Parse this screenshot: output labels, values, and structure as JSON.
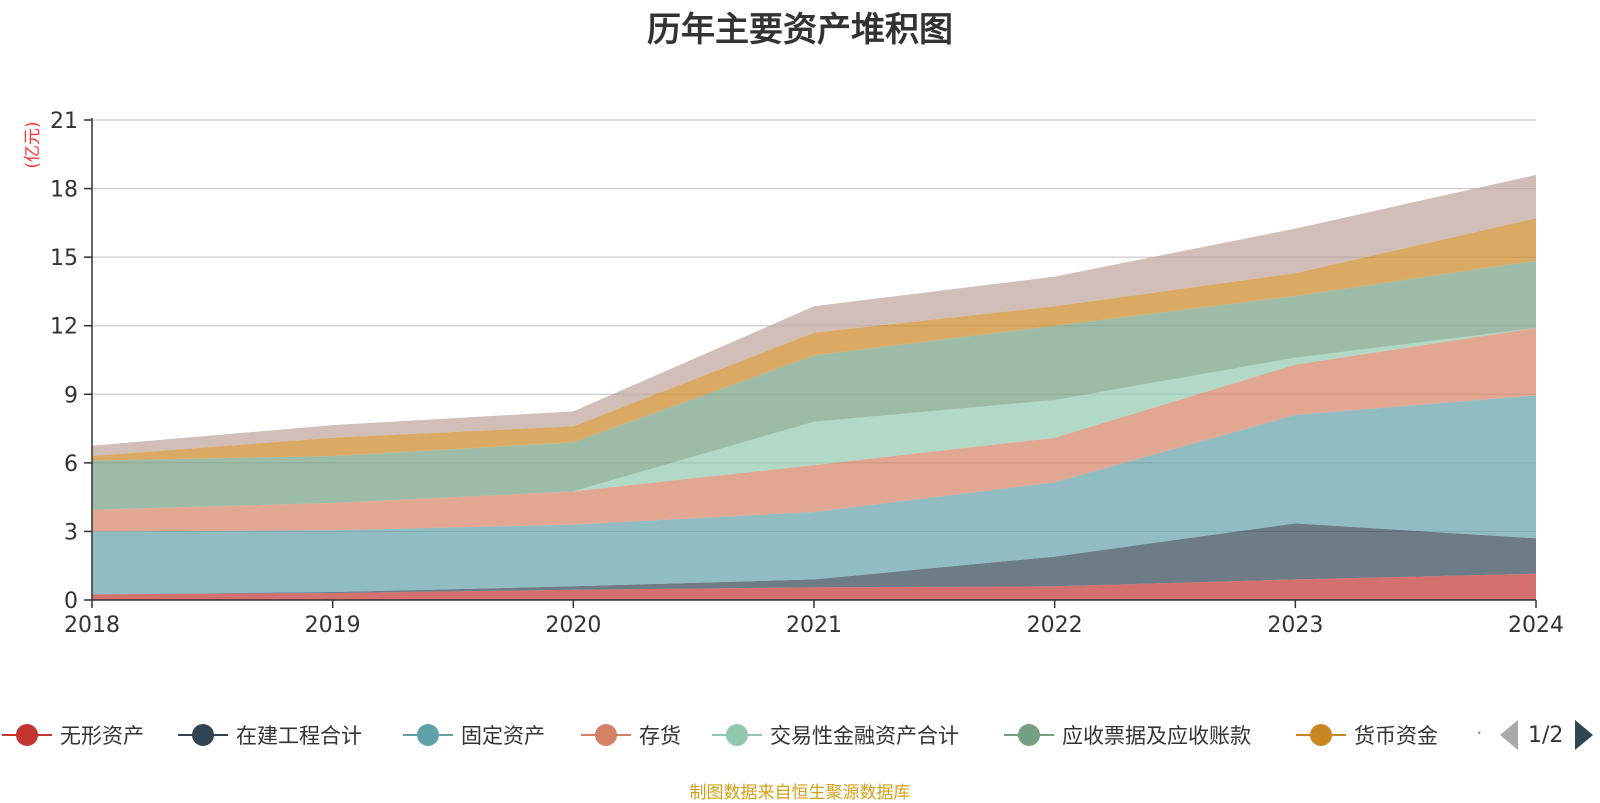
{
  "chart_data": {
    "type": "area",
    "title": "历年主要资产堆积图",
    "ylabel": "(亿元)",
    "xlabel": "",
    "categories": [
      "2018",
      "2019",
      "2020",
      "2021",
      "2022",
      "2023",
      "2024"
    ],
    "y_ticks": [
      "0",
      "3",
      "6",
      "9",
      "12",
      "15",
      "18",
      "21"
    ],
    "ylim": [
      0,
      21
    ],
    "stacked": true,
    "grid": true,
    "legend_position": "bottom",
    "series": [
      {
        "name": "无形资产",
        "color": "#c23531",
        "values": [
          0.25,
          0.3,
          0.45,
          0.55,
          0.6,
          0.9,
          1.15
        ]
      },
      {
        "name": "在建工程合计",
        "color": "#2f4554",
        "values": [
          0.0,
          0.05,
          0.15,
          0.35,
          1.3,
          2.45,
          1.55
        ]
      },
      {
        "name": "固定资产",
        "color": "#61a0a8",
        "values": [
          2.75,
          2.7,
          2.7,
          2.95,
          3.25,
          4.75,
          6.25
        ]
      },
      {
        "name": "存货",
        "color": "#d48265",
        "values": [
          0.95,
          1.2,
          1.45,
          2.05,
          1.95,
          2.2,
          2.95
        ]
      },
      {
        "name": "交易性金融资产合计",
        "color": "#91c7ae",
        "values": [
          0.0,
          0.0,
          0.0,
          1.9,
          1.65,
          0.3,
          0.0
        ]
      },
      {
        "name": "应收票据及应收账款",
        "color": "#749f83",
        "values": [
          2.15,
          2.05,
          2.15,
          2.9,
          3.25,
          2.7,
          2.95
        ]
      },
      {
        "name": "货币资金",
        "color": "#ca8622",
        "values": [
          0.2,
          0.8,
          0.7,
          1.0,
          0.85,
          1.0,
          1.85
        ]
      },
      {
        "name": "",
        "color": "#bda29a",
        "values": [
          0.45,
          0.55,
          0.65,
          1.15,
          1.3,
          1.95,
          1.9
        ]
      }
    ]
  },
  "legend": {
    "items": [
      {
        "label": "无形资产",
        "color": "#c23531"
      },
      {
        "label": "在建工程合计",
        "color": "#2f4554"
      },
      {
        "label": "固定资产",
        "color": "#61a0a8"
      },
      {
        "label": "存货",
        "color": "#d48265"
      },
      {
        "label": "交易性金融资产合计",
        "color": "#91c7ae"
      },
      {
        "label": "应收票据及应收账款",
        "color": "#749f83"
      },
      {
        "label": "货币资金",
        "color": "#ca8622"
      }
    ],
    "page_text": "1/2",
    "overflow_mark": "·"
  },
  "source_note": "制图数据来自恒生聚源数据库"
}
